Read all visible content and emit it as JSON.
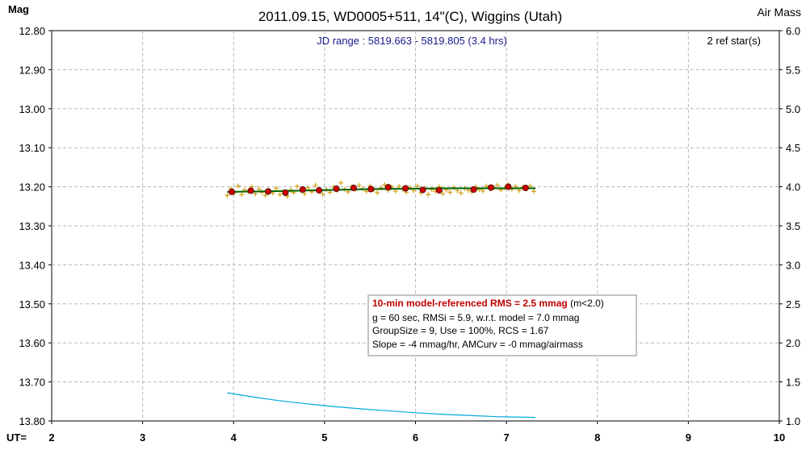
{
  "chart_data": {
    "type": "scatter",
    "title": "2011.09.15, WD0005+511, 14\"(C), Wiggins (Utah)",
    "ylabel": "Mag",
    "y2label": "Air Mass",
    "xlabel": "UT=",
    "jd_range": "JD range : 5819.663 - 5819.805 (3.4 hrs)",
    "ref_stars": "2 ref star(s)",
    "xlim": [
      2,
      10
    ],
    "ylim": [
      12.8,
      13.8
    ],
    "y2lim": [
      1.0,
      6.0
    ],
    "y_inverted": true,
    "grid": true,
    "xticks": [
      "2",
      "3",
      "4",
      "5",
      "6",
      "7",
      "8",
      "9",
      "10"
    ],
    "yticks": [
      "12.80",
      "12.90",
      "13.00",
      "13.10",
      "13.20",
      "13.30",
      "13.40",
      "13.50",
      "13.60",
      "13.70",
      "13.80"
    ],
    "y2ticks": [
      "6.0",
      "5.5",
      "5.0",
      "4.5",
      "4.0",
      "3.5",
      "3.0",
      "2.5",
      "2.0",
      "1.5",
      "1.0"
    ],
    "stats": {
      "line1_bold": "10-min model-referenced RMS = 2.5 mmag",
      "line1_rest": " (m<2.0)",
      "line2": "g = 60 sec, RMSi = 5.9, w.r.t. model = 7.0 mmag",
      "line3": "GroupSize = 9, Use = 100%, RCS = 1.67",
      "line4": "Slope = -4 mmag/hr, AMCurv = -0 mmag/airmass"
    },
    "series": [
      {
        "kind": "individual",
        "color": "#d4a017",
        "x": [
          3.93,
          3.97,
          4.01,
          4.05,
          4.09,
          4.12,
          4.16,
          4.2,
          4.24,
          4.28,
          4.31,
          4.35,
          4.39,
          4.43,
          4.47,
          4.51,
          4.55,
          4.59,
          4.63,
          4.66,
          4.7,
          4.74,
          4.78,
          4.82,
          4.86,
          4.9,
          4.94,
          4.98,
          5.02,
          5.06,
          5.1,
          5.14,
          5.18,
          5.22,
          5.26,
          5.3,
          5.34,
          5.38,
          5.42,
          5.46,
          5.5,
          5.54,
          5.58,
          5.62,
          5.66,
          5.7,
          5.74,
          5.78,
          5.82,
          5.86,
          5.9,
          5.94,
          5.98,
          6.02,
          6.06,
          6.1,
          6.14,
          6.18,
          6.22,
          6.26,
          6.3,
          6.34,
          6.38,
          6.42,
          6.46,
          6.5,
          6.54,
          6.58,
          6.62,
          6.66,
          6.7,
          6.74,
          6.78,
          6.82,
          6.86,
          6.9,
          6.94,
          6.98,
          7.02,
          7.06,
          7.1,
          7.14,
          7.18,
          7.22,
          7.26,
          7.3
        ],
        "y": [
          13.222,
          13.205,
          13.215,
          13.198,
          13.22,
          13.208,
          13.212,
          13.2,
          13.218,
          13.206,
          13.214,
          13.222,
          13.209,
          13.216,
          13.204,
          13.22,
          13.212,
          13.224,
          13.208,
          13.215,
          13.199,
          13.21,
          13.218,
          13.203,
          13.213,
          13.196,
          13.211,
          13.219,
          13.207,
          13.214,
          13.201,
          13.209,
          13.19,
          13.206,
          13.213,
          13.2,
          13.208,
          13.196,
          13.205,
          13.212,
          13.198,
          13.207,
          13.215,
          13.203,
          13.195,
          13.209,
          13.201,
          13.211,
          13.199,
          13.206,
          13.214,
          13.202,
          13.21,
          13.198,
          13.215,
          13.204,
          13.22,
          13.207,
          13.212,
          13.2,
          13.218,
          13.208,
          13.214,
          13.202,
          13.21,
          13.216,
          13.204,
          13.209,
          13.213,
          13.2,
          13.207,
          13.211,
          13.198,
          13.205,
          13.202,
          13.196,
          13.208,
          13.203,
          13.194,
          13.206,
          13.199,
          13.21,
          13.201,
          13.205,
          13.198,
          13.212
        ]
      },
      {
        "kind": "group-mean",
        "color": "#cc0000",
        "x": [
          3.98,
          4.19,
          4.38,
          4.57,
          4.76,
          4.94,
          5.13,
          5.32,
          5.51,
          5.7,
          5.89,
          6.08,
          6.26,
          6.64,
          6.83,
          7.02,
          7.21
        ],
        "y": [
          13.213,
          13.21,
          13.212,
          13.215,
          13.207,
          13.209,
          13.205,
          13.203,
          13.206,
          13.201,
          13.204,
          13.208,
          13.209,
          13.207,
          13.202,
          13.2,
          13.203
        ]
      },
      {
        "kind": "model",
        "color": "#006400",
        "x": [
          3.93,
          4.3,
          4.7,
          5.1,
          5.5,
          5.9,
          6.3,
          6.7,
          7.1,
          7.32
        ],
        "y": [
          13.213,
          13.212,
          13.21,
          13.208,
          13.206,
          13.205,
          13.204,
          13.204,
          13.204,
          13.204
        ]
      },
      {
        "kind": "airmass",
        "color": "#00aadd",
        "axis": "right",
        "x": [
          3.93,
          4.2,
          4.5,
          4.8,
          5.1,
          5.4,
          5.7,
          6.0,
          6.3,
          6.6,
          6.9,
          7.1,
          7.32
        ],
        "y": [
          1.36,
          1.31,
          1.26,
          1.22,
          1.185,
          1.155,
          1.13,
          1.105,
          1.085,
          1.07,
          1.055,
          1.05,
          1.045
        ]
      }
    ]
  }
}
